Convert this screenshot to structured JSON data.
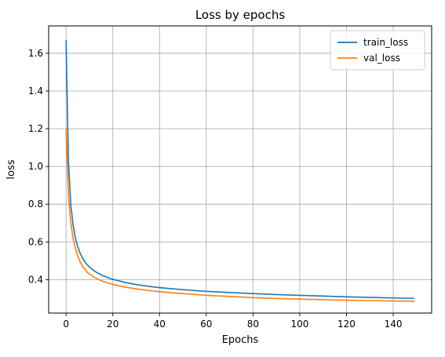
{
  "chart_data": {
    "type": "line",
    "title": "Loss by epochs",
    "xlabel": "Epochs",
    "ylabel": "loss",
    "xlim": [
      -7.45,
      156.45
    ],
    "ylim": [
      0.223,
      1.745
    ],
    "xticks": [
      0,
      20,
      40,
      60,
      80,
      100,
      120,
      140
    ],
    "yticks": [
      0.4,
      0.6,
      0.8,
      1.0,
      1.2,
      1.4,
      1.6
    ],
    "grid": true,
    "legend_position": "top-right",
    "series": [
      {
        "name": "train_loss",
        "color": "#1f77b4",
        "x": [
          0,
          1,
          2,
          3,
          4,
          5,
          6,
          7,
          8,
          9,
          10,
          12,
          14,
          16,
          18,
          20,
          25,
          30,
          35,
          40,
          45,
          50,
          60,
          70,
          80,
          90,
          100,
          110,
          120,
          130,
          140,
          149
        ],
        "y": [
          1.67,
          1.03,
          0.8,
          0.69,
          0.62,
          0.575,
          0.54,
          0.515,
          0.495,
          0.48,
          0.467,
          0.447,
          0.432,
          0.42,
          0.41,
          0.402,
          0.386,
          0.374,
          0.365,
          0.358,
          0.352,
          0.347,
          0.338,
          0.332,
          0.326,
          0.321,
          0.317,
          0.313,
          0.309,
          0.306,
          0.303,
          0.301
        ]
      },
      {
        "name": "val_loss",
        "color": "#ff7f0e",
        "x": [
          0,
          1,
          2,
          3,
          4,
          5,
          6,
          7,
          8,
          9,
          10,
          12,
          14,
          16,
          18,
          20,
          25,
          30,
          35,
          40,
          45,
          50,
          60,
          70,
          80,
          90,
          100,
          110,
          120,
          130,
          140,
          149
        ],
        "y": [
          1.2,
          0.85,
          0.7,
          0.62,
          0.565,
          0.525,
          0.495,
          0.472,
          0.455,
          0.44,
          0.43,
          0.413,
          0.4,
          0.39,
          0.382,
          0.375,
          0.361,
          0.351,
          0.343,
          0.336,
          0.331,
          0.326,
          0.317,
          0.311,
          0.305,
          0.3,
          0.297,
          0.294,
          0.291,
          0.289,
          0.287,
          0.285
        ]
      }
    ]
  }
}
